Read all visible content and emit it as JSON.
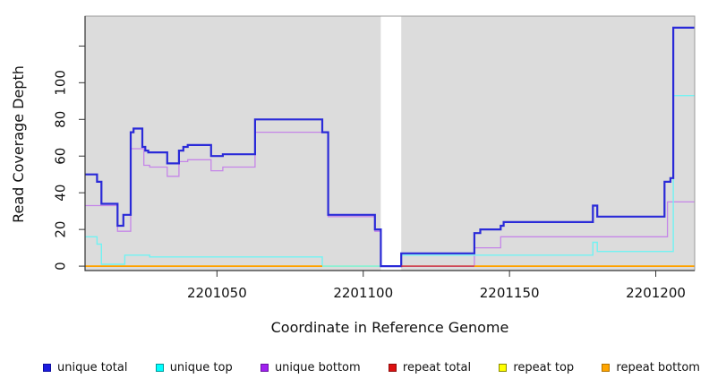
{
  "chart_data": {
    "type": "line",
    "subtype": "step-coverage",
    "title": "",
    "xlabel": "Coordinate in Reference Genome",
    "ylabel": "Read Coverage Depth",
    "xlim": [
      2201004.9,
      2201213.3
    ],
    "ylim": [
      -2.4,
      136.3
    ],
    "x_ticks": [
      2201050,
      2201100,
      2201150,
      2201200
    ],
    "x_tick_labels": [
      "2201050",
      "2201100",
      "2201150",
      "2201200"
    ],
    "y_ticks": [
      0,
      20,
      40,
      60,
      80,
      100,
      120
    ],
    "y_tick_labels": [
      "0",
      "20",
      "40",
      "60",
      "80",
      "100",
      ""
    ],
    "plot_bg": "#dcdcdc",
    "outer_bg": "#ffffff",
    "gap_band": {
      "from": 2201106,
      "to": 2201113,
      "color": "#ffffff"
    },
    "grid": false,
    "legend_position": "bottom",
    "series": [
      {
        "name": "repeat top",
        "color": "#f2f200",
        "width": 1.4,
        "segments": [
          [
            [
              2201004.9,
              0
            ],
            [
              2201213.3,
              0
            ]
          ]
        ]
      },
      {
        "name": "unique bottom",
        "color": "#c585e8",
        "width": 1.3,
        "segments": [
          [
            [
              2201004.9,
              33
            ],
            [
              2201016,
              19
            ],
            [
              2201020.5,
              64
            ],
            [
              2201025,
              55
            ],
            [
              2201027,
              54
            ],
            [
              2201033,
              49
            ],
            [
              2201037,
              57
            ],
            [
              2201040,
              58
            ],
            [
              2201048,
              52
            ],
            [
              2201052,
              54
            ],
            [
              2201063,
              73
            ],
            [
              2201088,
              27
            ],
            [
              2201104,
              19
            ],
            [
              2201106,
              0
            ],
            [
              2201138,
              10
            ],
            [
              2201147,
              16
            ],
            [
              2201204,
              35
            ],
            [
              2201213.3,
              35
            ]
          ]
        ]
      },
      {
        "name": "unique top",
        "color": "#72f2f2",
        "width": 1.4,
        "segments": [
          [
            [
              2201004.9,
              16
            ],
            [
              2201009,
              12
            ],
            [
              2201010.5,
              1
            ],
            [
              2201018.5,
              6
            ],
            [
              2201027,
              5
            ],
            [
              2201086,
              0
            ],
            [
              2201113,
              6
            ],
            [
              2201178.5,
              13
            ],
            [
              2201180,
              8
            ],
            [
              2201206,
              93
            ],
            [
              2201213.3,
              93
            ]
          ]
        ]
      },
      {
        "name": "unique total",
        "color": "#2a2ad8",
        "width": 2.2,
        "segments": [
          [
            [
              2201004.9,
              50
            ],
            [
              2201009,
              46
            ],
            [
              2201010.5,
              34
            ],
            [
              2201016,
              22
            ],
            [
              2201018,
              28
            ],
            [
              2201020.5,
              73
            ],
            [
              2201021.5,
              75
            ],
            [
              2201024.5,
              65
            ],
            [
              2201025.5,
              63
            ],
            [
              2201026.5,
              62
            ],
            [
              2201033,
              56
            ],
            [
              2201037,
              63
            ],
            [
              2201038.5,
              65
            ],
            [
              2201040,
              66
            ],
            [
              2201048,
              60
            ],
            [
              2201052,
              61
            ],
            [
              2201063,
              80
            ],
            [
              2201086,
              73
            ],
            [
              2201088,
              28
            ],
            [
              2201104,
              20
            ],
            [
              2201106,
              0
            ],
            [
              2201113,
              7
            ],
            [
              2201138,
              18
            ],
            [
              2201140,
              20
            ],
            [
              2201147,
              22
            ],
            [
              2201148,
              24
            ],
            [
              2201178.5,
              33
            ],
            [
              2201180,
              27
            ],
            [
              2201203,
              46
            ],
            [
              2201205,
              48
            ],
            [
              2201206,
              130
            ],
            [
              2201213.3,
              130
            ]
          ]
        ]
      },
      {
        "name": "repeat total",
        "color": "#cc2244",
        "width": 1.4,
        "segments": [
          [
            [
              2201113,
              0
            ],
            [
              2201138,
              0
            ]
          ]
        ]
      },
      {
        "name": "repeat bottom",
        "color": "#ff9f00",
        "width": 1.8,
        "segments": [
          [
            [
              2201004.9,
              0
            ],
            [
              2201086,
              0
            ]
          ],
          [
            [
              2201138,
              0
            ],
            [
              2201213.3,
              0
            ]
          ]
        ]
      }
    ],
    "legend": [
      {
        "label": "unique total",
        "swatch": "#1c1cdf",
        "border": "#0d0da0"
      },
      {
        "label": "unique top",
        "swatch": "#00ffff",
        "border": "#009999"
      },
      {
        "label": "unique bottom",
        "swatch": "#a020f0",
        "border": "#6a12a3"
      },
      {
        "label": "repeat total",
        "swatch": "#dd1111",
        "border": "#8f0b0b"
      },
      {
        "label": "repeat top",
        "swatch": "#ffff00",
        "border": "#8b8b00"
      },
      {
        "label": "repeat bottom",
        "swatch": "#ffa500",
        "border": "#b37400"
      }
    ]
  }
}
